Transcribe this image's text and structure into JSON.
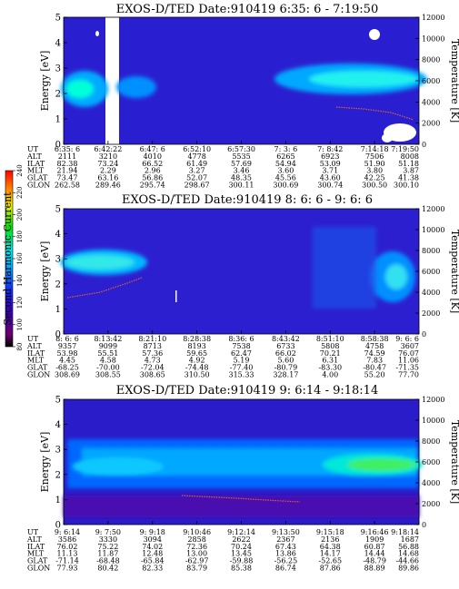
{
  "chart_data": {
    "type": "heatmap",
    "colorbar": {
      "label": "Second Harmonic Current",
      "ticks": [
        "80",
        "100",
        "120",
        "140",
        "160",
        "180",
        "200",
        "220",
        "240"
      ],
      "range": [
        80,
        240
      ]
    },
    "panels": [
      {
        "title": "EXOS-D/TED   Date:910419   6:35: 6 - 7:19:50",
        "ylabel": "Energy [eV]",
        "y2label": "Temperature [K]",
        "ylim": [
          0,
          5
        ],
        "yticks": [
          "0",
          "1",
          "2",
          "3",
          "4",
          "5"
        ],
        "y2lim": [
          0,
          12000
        ],
        "y2ticks": [
          "0",
          "2000",
          "4000",
          "6000",
          "8000",
          "10000",
          "12000"
        ],
        "ephemeris": {
          "labels": [
            "UT",
            "ALT",
            "ILAT",
            "MLT",
            "GLAT",
            "GLON"
          ],
          "columns": [
            [
              "6:35: 6",
              "2111",
              "82.38",
              "21.94",
              "73.47",
              "262.58"
            ],
            [
              "6:42:22",
              "3210",
              "73.24",
              "2.29",
              "63.16",
              "289.46"
            ],
            [
              "6:47: 6",
              "4010",
              "66.52",
              "2.96",
              "56.86",
              "295.74"
            ],
            [
              "6:52:10",
              "4778",
              "61.49",
              "3.27",
              "52.07",
              "298.67"
            ],
            [
              "6:57:30",
              "5535",
              "57.69",
              "3.46",
              "48.35",
              "300.11"
            ],
            [
              "7: 3: 6",
              "6265",
              "54.94",
              "3.60",
              "45.56",
              "300.69"
            ],
            [
              "7: 8:42",
              "6923",
              "53.09",
              "3.71",
              "43.60",
              "300.74"
            ],
            [
              "7:14:18",
              "7506",
              "51.90",
              "3.80",
              "42.25",
              "300.50"
            ],
            [
              "7:19:50",
              "8008",
              "51.18",
              "3.87",
              "41.38",
              "300.10"
            ]
          ]
        }
      },
      {
        "title": "EXOS-D/TED   Date:910419   8: 6: 6 - 9: 6: 6",
        "ylabel": "Energy [eV]",
        "y2label": "Temperature [K]",
        "ylim": [
          0,
          5
        ],
        "yticks": [
          "0",
          "1",
          "2",
          "3",
          "4",
          "5"
        ],
        "y2lim": [
          0,
          12000
        ],
        "y2ticks": [
          "0",
          "2000",
          "4000",
          "6000",
          "8000",
          "10000",
          "12000"
        ],
        "ephemeris": {
          "labels": [
            "UT",
            "ALT",
            "ILAT",
            "MLT",
            "GLAT",
            "GLON"
          ],
          "columns": [
            [
              "8: 6: 6",
              "9357",
              "53.98",
              "4.45",
              "-68.25",
              "308.69"
            ],
            [
              "8:13:42",
              "9099",
              "55.51",
              "4.58",
              "-70.00",
              "308.55"
            ],
            [
              "8:21:10",
              "8713",
              "57.36",
              "4.73",
              "-72.04",
              "308.65"
            ],
            [
              "8:28:38",
              "8193",
              "59.65",
              "4.92",
              "-74.48",
              "310.50"
            ],
            [
              "8:36: 6",
              "7538",
              "62.47",
              "5.19",
              "-77.40",
              "315.33"
            ],
            [
              "8:43:42",
              "6733",
              "66.02",
              "5.60",
              "-80.79",
              "328.17"
            ],
            [
              "8:51:10",
              "5808",
              "70.21",
              "6.31",
              "-83.30",
              "4.00"
            ],
            [
              "8:58:38",
              "4758",
              "74.59",
              "7.83",
              "-80.47",
              "55.20"
            ],
            [
              "9: 6: 6",
              "3607",
              "76.07",
              "11.06",
              "-71.35",
              "77.70"
            ]
          ]
        }
      },
      {
        "title": "EXOS-D/TED   Date:910419   9: 6:14 - 9:18:14",
        "ylabel": "Energy [eV]",
        "y2label": "Temperature [K]",
        "ylim": [
          0,
          5
        ],
        "yticks": [
          "0",
          "1",
          "2",
          "3",
          "4",
          "5"
        ],
        "y2lim": [
          0,
          12000
        ],
        "y2ticks": [
          "0",
          "2000",
          "4000",
          "6000",
          "8000",
          "10000",
          "12000"
        ],
        "ephemeris": {
          "labels": [
            "UT",
            "ALT",
            "ILAT",
            "MLT",
            "GLAT",
            "GLON"
          ],
          "columns": [
            [
              "9: 6:14",
              "3586",
              "76.02",
              "11.13",
              "-71.14",
              "77.93"
            ],
            [
              "9: 7:50",
              "3330",
              "75.22",
              "11.87",
              "-68.48",
              "80.42"
            ],
            [
              "9: 9:18",
              "3094",
              "74.02",
              "12.48",
              "-65.84",
              "82.33"
            ],
            [
              "9:10:46",
              "2858",
              "72.36",
              "13.00",
              "-62.97",
              "83.79"
            ],
            [
              "9:12:14",
              "2622",
              "70.24",
              "13.45",
              "-59.88",
              "85.38"
            ],
            [
              "9:13:50",
              "2367",
              "67.43",
              "13.86",
              "-56.25",
              "86.74"
            ],
            [
              "9:15:18",
              "2136",
              "64.38",
              "14.17",
              "-52.65",
              "87.86"
            ],
            [
              "9:16:46",
              "1909",
              "60.87",
              "14.44",
              "-48.79",
              "88.89"
            ],
            [
              "9:18:14",
              "1687",
              "56.88",
              "14.68",
              "-44.66",
              "89.86"
            ]
          ]
        }
      }
    ]
  }
}
